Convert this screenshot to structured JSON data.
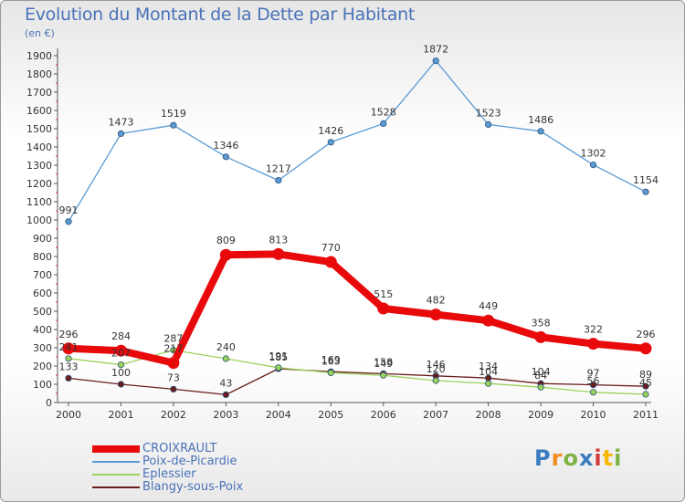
{
  "title": "Evolution du Montant de la Dette par Habitant",
  "subtitle": "(en €)",
  "logo": {
    "text": "Proxiti",
    "colors": [
      "#3a7cc0",
      "#f08c1c",
      "#7cb342",
      "#3a7cc0",
      "#d23c3c",
      "#f5b800",
      "#7cb342"
    ]
  },
  "chart_data": {
    "type": "line",
    "categories": [
      "2000",
      "2001",
      "2002",
      "2003",
      "2004",
      "2005",
      "2006",
      "2007",
      "2008",
      "2009",
      "2010",
      "2011"
    ],
    "y_ticks": [
      "0",
      "100",
      "200",
      "300",
      "400",
      "500",
      "600",
      "700",
      "800",
      "900",
      "1000",
      "1100",
      "1200",
      "1300",
      "1400",
      "1500",
      "1600",
      "1700",
      "1800",
      "1900"
    ],
    "ylim": [
      0,
      1900
    ],
    "grid": false,
    "legend_position": "bottom-left",
    "series": [
      {
        "name": "CROIXRAULT",
        "color": "#e8090b",
        "values": [
          296,
          284,
          217,
          809,
          813,
          770,
          515,
          482,
          449,
          358,
          322,
          296
        ],
        "labels": [
          "296",
          "284",
          "217",
          "809",
          "813",
          "770",
          "515",
          "482",
          "449",
          "358",
          "322",
          "296"
        ]
      },
      {
        "name": "Poix-de-Picardie",
        "color": "#5a9bd4",
        "values": [
          991,
          1473,
          1519,
          1346,
          1217,
          1426,
          1528,
          1872,
          1523,
          1486,
          1302,
          1154
        ],
        "labels": [
          "991",
          "1473",
          "1519",
          "1346",
          "1217",
          "1426",
          "1528",
          "1872",
          "1523",
          "1486",
          "1302",
          "1154"
        ]
      },
      {
        "name": "Eplessier",
        "color": "#9ad35a",
        "values": [
          241,
          207,
          287,
          240,
          191,
          163,
          149,
          120,
          104,
          84,
          56,
          45
        ],
        "labels": [
          "241",
          "207",
          "287",
          "240",
          "191",
          "163",
          "149",
          "120",
          "104",
          "84",
          "56",
          "45"
        ]
      },
      {
        "name": "Blangy-sous-Poix",
        "color": "#6b1d1d",
        "values": [
          133,
          100,
          73,
          43,
          185,
          169,
          158,
          146,
          134,
          104,
          97,
          89
        ],
        "labels": [
          "133",
          "100",
          "73",
          "43",
          "185",
          "169",
          "158",
          "146",
          "134",
          "104",
          "97",
          "89"
        ]
      }
    ]
  }
}
